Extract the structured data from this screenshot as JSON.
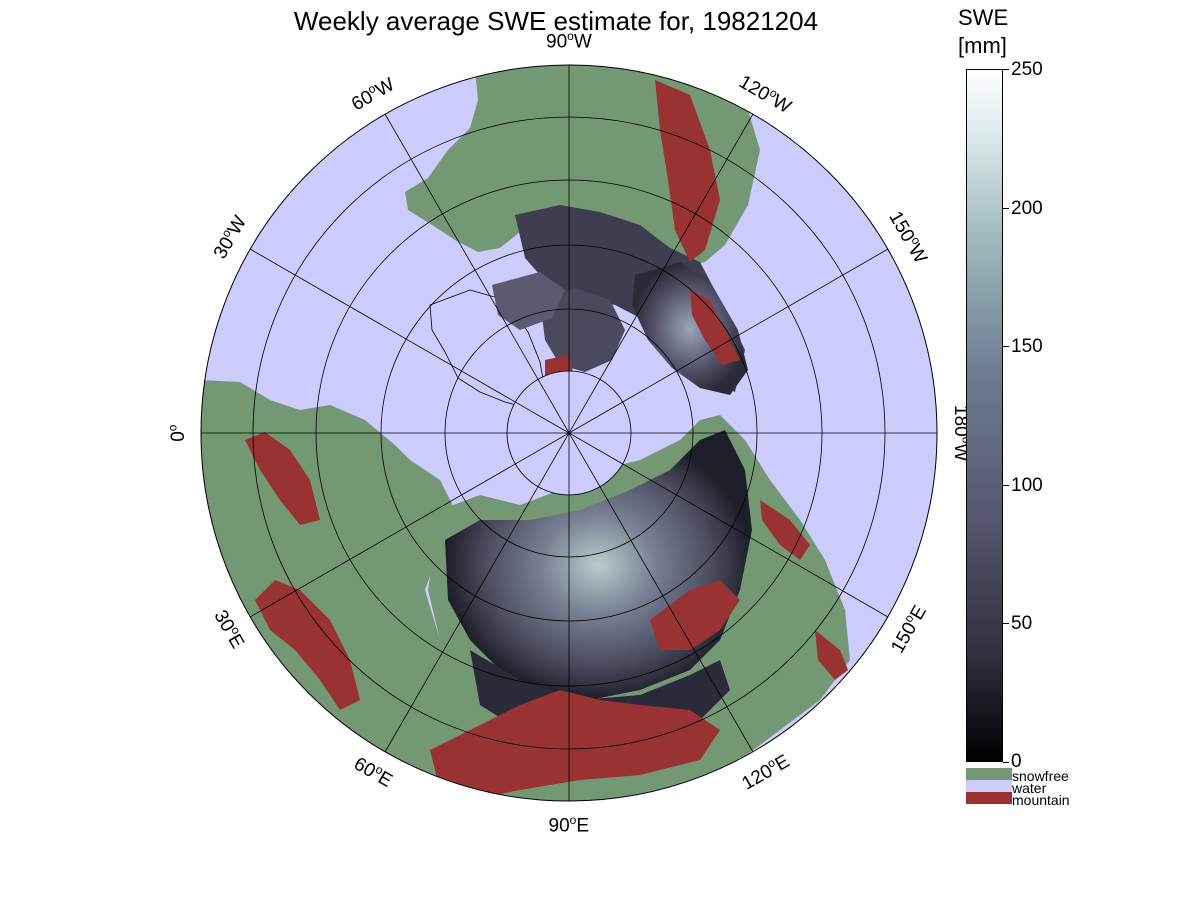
{
  "title": "Weekly average SWE estimate for, 19821204",
  "map": {
    "projection": "north-polar-stereographic",
    "longitude_labels": [
      {
        "deg": -90,
        "value": "90",
        "hemi": "W"
      },
      {
        "deg": -120,
        "value": "120",
        "hemi": "W"
      },
      {
        "deg": -150,
        "value": "150",
        "hemi": "W"
      },
      {
        "deg": 180,
        "value": "180",
        "hemi": "W"
      },
      {
        "deg": 150,
        "value": "150",
        "hemi": "E"
      },
      {
        "deg": 120,
        "value": "120",
        "hemi": "E"
      },
      {
        "deg": 90,
        "value": "90",
        "hemi": "E"
      },
      {
        "deg": 60,
        "value": "60",
        "hemi": "E"
      },
      {
        "deg": 30,
        "value": "30",
        "hemi": "E"
      },
      {
        "deg": 0,
        "value": "0",
        "hemi": ""
      },
      {
        "deg": -30,
        "value": "30",
        "hemi": "W"
      },
      {
        "deg": -60,
        "value": "60",
        "hemi": "W"
      }
    ],
    "colors": {
      "water": "#ccccff",
      "snowfree": "#749874",
      "mountain": "#993333",
      "snow_low": "#1e1e28",
      "snow_mid": "#4a4a5e",
      "snow_high": "#b8cccc"
    }
  },
  "colorbar": {
    "title_line1": "SWE",
    "title_line2": "[mm]",
    "min": 0,
    "max": 250,
    "ticks": [
      "0",
      "50",
      "100",
      "150",
      "200",
      "250"
    ],
    "categories": [
      {
        "label": "snowfree",
        "color": "#749874"
      },
      {
        "label": "water",
        "color": "#ccccff"
      },
      {
        "label": "mountain",
        "color": "#993333"
      }
    ]
  }
}
